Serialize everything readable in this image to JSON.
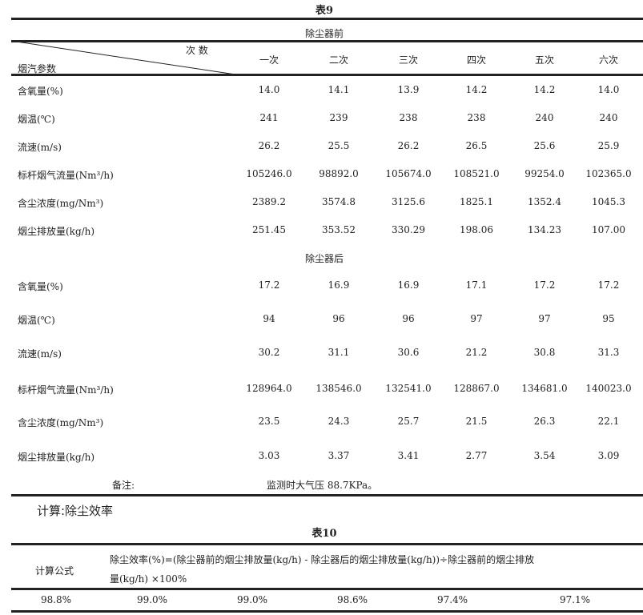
{
  "table9": {
    "title": "表9",
    "section_before": "除尘器前",
    "section_after": "除尘器后",
    "header": {
      "count_label": "次 数",
      "param_label": "烟汽参数",
      "columns": [
        "一次",
        "二次",
        "三次",
        "四次",
        "五次",
        "六次"
      ]
    },
    "before_rows": [
      {
        "label": "含氧量(%)",
        "values": [
          "14.0",
          "14.1",
          "13.9",
          "14.2",
          "14.2",
          "14.0"
        ]
      },
      {
        "label": "烟温(℃)",
        "values": [
          "241",
          "239",
          "238",
          "238",
          "240",
          "240"
        ]
      },
      {
        "label": "流速(m/s)",
        "values": [
          "26.2",
          "25.5",
          "26.2",
          "26.5",
          "25.6",
          "25.9"
        ]
      },
      {
        "label": "标杆烟气流量(Nm³/h)",
        "values": [
          "105246.0",
          "98892.0",
          "105674.0",
          "108521.0",
          "99254.0",
          "102365.0"
        ]
      },
      {
        "label": "含尘浓度(mg/Nm³)",
        "values": [
          "2389.2",
          "3574.8",
          "3125.6",
          "1825.1",
          "1352.4",
          "1045.3"
        ]
      },
      {
        "label": "烟尘排放量(kg/h)",
        "values": [
          "251.45",
          "353.52",
          "330.29",
          "198.06",
          "134.23",
          "107.00"
        ]
      }
    ],
    "after_rows": [
      {
        "label": "含氧量(%)",
        "values": [
          "17.2",
          "16.9",
          "16.9",
          "17.1",
          "17.2",
          "17.2"
        ]
      },
      {
        "label": "烟温(℃)",
        "values": [
          "94",
          "96",
          "96",
          "97",
          "97",
          "95"
        ]
      },
      {
        "label": "流速(m/s)",
        "values": [
          "30.2",
          "31.1",
          "30.6",
          "21.2",
          "30.8",
          "31.3"
        ]
      },
      {
        "label": "标杆烟气流量(Nm³/h)",
        "values": [
          "128964.0",
          "138546.0",
          "132541.0",
          "128867.0",
          "134681.0",
          "140023.0"
        ]
      },
      {
        "label": "含尘浓度(mg/Nm³)",
        "values": [
          "23.5",
          "24.3",
          "25.7",
          "21.5",
          "26.3",
          "22.1"
        ]
      },
      {
        "label": "烟尘排放量(kg/h)",
        "values": [
          "3.03",
          "3.37",
          "3.41",
          "2.77",
          "3.54",
          "3.09"
        ]
      }
    ],
    "note_label": "备注:",
    "note_text": "监测时大气压 88.7KPa。"
  },
  "calc_heading": "计算:除尘效率",
  "table10": {
    "title": "表10",
    "formula_label": "计算公式",
    "formula_line1": "除尘效率(%)=(除尘器前的烟尘排放量(kg/h) - 除尘器后的烟尘排放量(kg/h))÷除尘器前的烟尘排放",
    "formula_line2": "量(kg/h) ×100%",
    "values": [
      "98.8%",
      "99.0%",
      "99.0%",
      "98.6%",
      "97.4%",
      "97.1%"
    ]
  }
}
